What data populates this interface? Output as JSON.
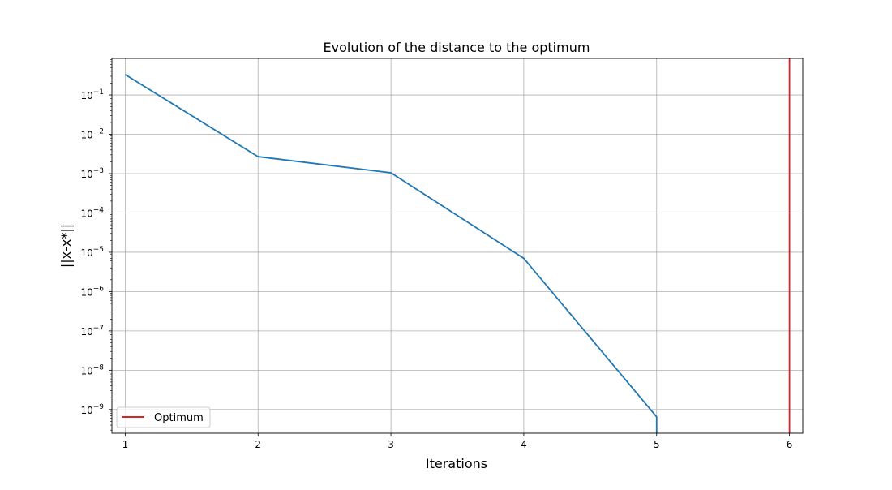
{
  "chart_data": {
    "type": "line",
    "title": "Evolution of the distance to the optimum",
    "xlabel": "Iterations",
    "ylabel": "||x-x*||",
    "yscale": "log",
    "grid": true,
    "xlim": [
      0.9,
      6.1
    ],
    "ylim": [
      2.5e-10,
      0.85
    ],
    "xticks": [
      1,
      2,
      3,
      4,
      5,
      6
    ],
    "yticks": [
      {
        "value": 0.1,
        "base": "10",
        "exp": "−1"
      },
      {
        "value": 0.01,
        "base": "10",
        "exp": "−2"
      },
      {
        "value": 0.001,
        "base": "10",
        "exp": "−3"
      },
      {
        "value": 0.0001,
        "base": "10",
        "exp": "−4"
      },
      {
        "value": 1e-05,
        "base": "10",
        "exp": "−5"
      },
      {
        "value": 1e-06,
        "base": "10",
        "exp": "−6"
      },
      {
        "value": 1e-07,
        "base": "10",
        "exp": "−7"
      },
      {
        "value": 1e-08,
        "base": "10",
        "exp": "−8"
      },
      {
        "value": 1e-09,
        "base": "10",
        "exp": "−9"
      }
    ],
    "series": [
      {
        "color": "#1f77b4",
        "x": [
          1,
          2,
          3,
          4,
          5,
          5
        ],
        "y": [
          0.33,
          0.0027,
          0.00105,
          7e-06,
          6.5e-10,
          2.5e-10
        ]
      }
    ],
    "vlines": [
      {
        "name": "Optimum",
        "x": 6,
        "color": "#d62728"
      }
    ],
    "legend": {
      "position": "lower-left",
      "entries": [
        {
          "label": "Optimum",
          "color": "#d62728"
        }
      ]
    }
  }
}
